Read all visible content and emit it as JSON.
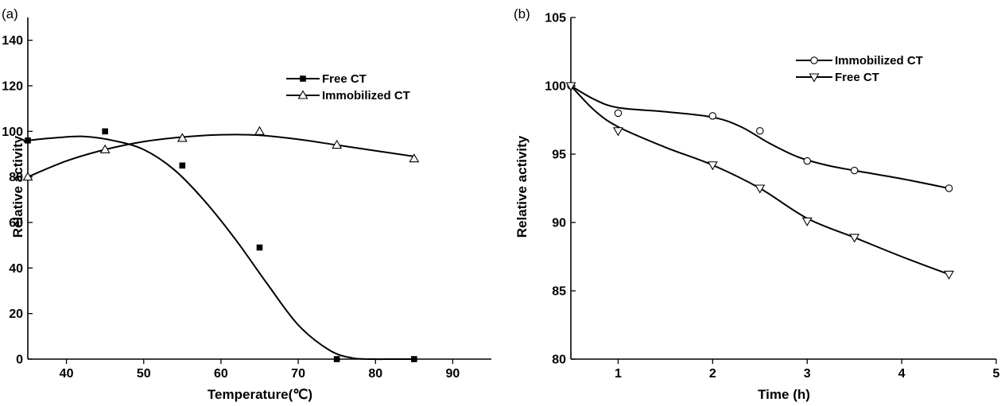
{
  "chart_data": [
    {
      "panel": "(a)",
      "type": "scatter",
      "xlabel": "Temperature(℃)",
      "ylabel": "Relative activity",
      "xlim": [
        35,
        95
      ],
      "ylim": [
        0,
        150
      ],
      "xticks": [
        40,
        50,
        60,
        70,
        80,
        90
      ],
      "yticks": [
        0,
        20,
        40,
        60,
        80,
        100,
        120,
        140
      ],
      "legend_position": "top-right",
      "series": [
        {
          "name": "Free CT",
          "marker": "square-filled",
          "x": [
            35,
            45,
            55,
            65,
            75,
            85
          ],
          "y": [
            96,
            100,
            85,
            49,
            0,
            0
          ],
          "fit": {
            "x": [
              35,
              38,
              42,
              46,
              50,
              54,
              58,
              62,
              66,
              70,
              74,
              77,
              80,
              82,
              85
            ],
            "y": [
              96,
              97,
              97.8,
              96,
              92,
              83,
              69,
              52,
              33,
              15,
              4,
              0.5,
              0,
              0,
              0
            ]
          }
        },
        {
          "name": "Immobilized CT",
          "marker": "triangle-open",
          "x": [
            35,
            45,
            55,
            65,
            75,
            85
          ],
          "y": [
            80,
            92,
            97,
            100,
            94,
            88
          ],
          "fit": {
            "x": [
              35,
              40,
              45,
              50,
              55,
              60,
              65,
              70,
              75,
              80,
              85
            ],
            "y": [
              80,
              87,
              92,
              95.5,
              97.5,
              98.5,
              98.3,
              96.5,
              94,
              91.5,
              89
            ]
          }
        }
      ]
    },
    {
      "panel": "(b)",
      "type": "line",
      "xlabel": "Time (h)",
      "ylabel": "Relative activity",
      "xlim": [
        0.5,
        5
      ],
      "ylim": [
        80,
        105
      ],
      "xticks": [
        1,
        2,
        3,
        4,
        5
      ],
      "yticks": [
        80,
        85,
        90,
        95,
        100,
        105
      ],
      "legend_position": "top-right",
      "series": [
        {
          "name": "Immobilized CT",
          "marker": "circle-open",
          "x": [
            0.5,
            1,
            2,
            2.5,
            3,
            3.5,
            4.5
          ],
          "y": [
            100,
            98,
            97.8,
            96.7,
            94.5,
            93.8,
            92.5
          ],
          "fit": {
            "x": [
              0.5,
              0.75,
              1,
              1.5,
              2,
              2.3,
              2.6,
              2.9,
              3.2,
              3.5,
              4,
              4.5
            ],
            "y": [
              100,
              99,
              98.4,
              98.1,
              97.7,
              97,
              95.8,
              94.8,
              94.2,
              93.8,
              93.2,
              92.5
            ]
          }
        },
        {
          "name": "Free CT",
          "marker": "triangle-down-open",
          "x": [
            0.5,
            1,
            2,
            2.5,
            3,
            3.5,
            4.5
          ],
          "y": [
            100,
            96.7,
            94.2,
            92.5,
            90.1,
            88.9,
            86.2
          ],
          "fit": {
            "x": [
              0.5,
              0.75,
              1,
              1.5,
              2,
              2.5,
              3,
              3.5,
              4,
              4.5
            ],
            "y": [
              100,
              98.2,
              97,
              95.5,
              94.2,
              92.5,
              90.3,
              88.9,
              87.5,
              86.2
            ]
          }
        }
      ]
    }
  ]
}
